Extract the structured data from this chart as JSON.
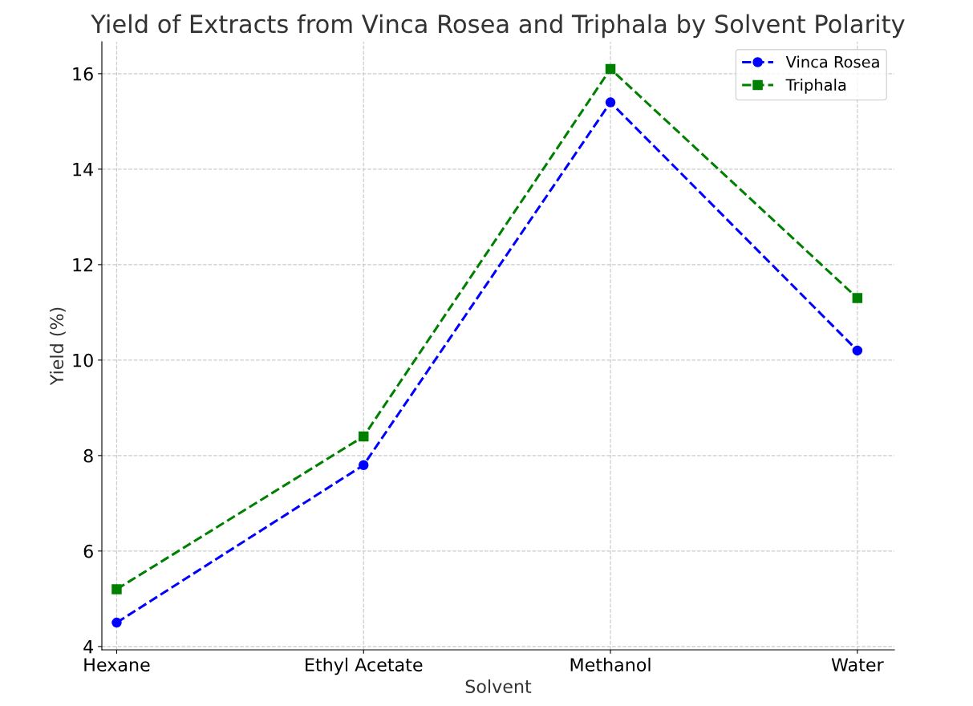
{
  "chart_data": {
    "type": "line",
    "title": "Yield of Extracts from Vinca Rosea and Triphala by Solvent Polarity",
    "xlabel": "Solvent",
    "ylabel": "Yield (%)",
    "categories": [
      "Hexane",
      "Ethyl Acetate",
      "Methanol",
      "Water"
    ],
    "series": [
      {
        "name": "Vinca Rosea",
        "color": "#0000ff",
        "marker": "circle",
        "values": [
          4.5,
          7.8,
          15.4,
          10.2
        ]
      },
      {
        "name": "Triphala",
        "color": "#008000",
        "marker": "square",
        "values": [
          5.2,
          8.4,
          16.1,
          11.3
        ]
      }
    ],
    "ylim": [
      3.93,
      16.67
    ],
    "yticks": [
      4,
      6,
      8,
      10,
      12,
      14,
      16
    ],
    "grid": true,
    "legend": "top right",
    "line_style": "dashed"
  }
}
